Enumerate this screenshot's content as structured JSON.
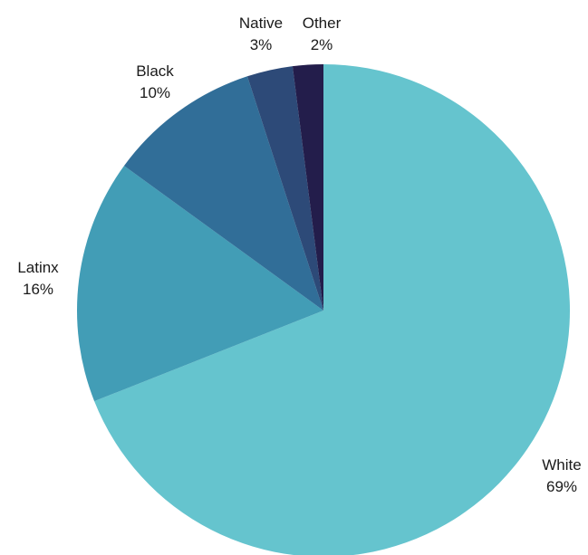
{
  "chart_data": {
    "type": "pie",
    "title": "",
    "categories": [
      "White",
      "Latinx",
      "Black",
      "Native",
      "Other"
    ],
    "values": [
      69,
      16,
      10,
      3,
      2
    ],
    "labels": [
      "69%",
      "16%",
      "10%",
      "3%",
      "2%"
    ],
    "colors": [
      "#65c4ce",
      "#429db6",
      "#316e98",
      "#2d4a78",
      "#231d4b"
    ],
    "start": "12 o'clock",
    "direction": "clockwise",
    "legend": "none (labels outside slices)"
  }
}
